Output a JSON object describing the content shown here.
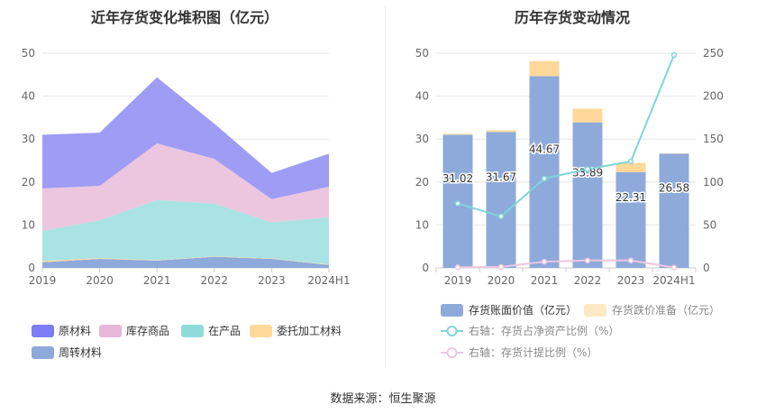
{
  "titles": {
    "left": "近年存货变化堆积图（亿元）",
    "right": "历年存货变动情况"
  },
  "source_text": "数据来源：恒生聚源",
  "chart_data": [
    {
      "type": "area",
      "stacked": true,
      "title": "近年存货变化堆积图（亿元）",
      "x": [
        "2019",
        "2020",
        "2021",
        "2022",
        "2023",
        "2024H1"
      ],
      "ylim": [
        0,
        50
      ],
      "yticks": [
        0,
        10,
        20,
        30,
        40,
        50
      ],
      "grid": true,
      "legend_position": "bottom",
      "series": [
        {
          "name": "周转材料",
          "color": "#8eaadb",
          "values": [
            1.3,
            2.1,
            1.7,
            2.6,
            2.1,
            0.7
          ]
        },
        {
          "name": "委托加工材料",
          "color": "#ffd89a",
          "values": [
            0.3,
            0.2,
            0.1,
            0.1,
            0.1,
            0.1
          ]
        },
        {
          "name": "在产品",
          "color": "#a9e3e3",
          "values": [
            7.0,
            8.8,
            14.0,
            12.3,
            8.4,
            11.0
          ]
        },
        {
          "name": "库存商品",
          "color": "#ecc6df",
          "values": [
            9.9,
            8.0,
            13.2,
            10.4,
            5.4,
            7.1
          ]
        },
        {
          "name": "原材料",
          "color": "#9e9cf5",
          "values": [
            12.5,
            12.4,
            15.4,
            8.2,
            6.1,
            7.7
          ]
        }
      ],
      "legend_order": [
        "原材料",
        "库存商品",
        "在产品",
        "委托加工材料",
        "周转材料"
      ],
      "legend_colors": {
        "原材料": "#7d7cf2",
        "库存商品": "#e7b6d9",
        "在产品": "#8fdbdc",
        "委托加工材料": "#ffd89a",
        "周转材料": "#8eaadb"
      }
    },
    {
      "type": "bar",
      "stacked": true,
      "title": "历年存货变动情况",
      "categories": [
        "2019",
        "2020",
        "2021",
        "2022",
        "2023",
        "2024H1"
      ],
      "ylim": [
        0,
        50
      ],
      "yticks": [
        0,
        10,
        20,
        30,
        40,
        50
      ],
      "y2lim": [
        0,
        250
      ],
      "y2ticks": [
        0,
        50,
        100,
        150,
        200,
        250
      ],
      "grid": true,
      "legend_position": "bottom",
      "series": [
        {
          "name": "存货账面价值（亿元）",
          "color": "#8eaadb",
          "type": "bar",
          "values": [
            31.02,
            31.67,
            44.67,
            33.89,
            22.31,
            26.58
          ],
          "labels": [
            "31.02",
            "31.67",
            "44.67",
            "33.89",
            "22.31",
            "26.58"
          ]
        },
        {
          "name": "存货跌价准备（亿元）",
          "color": "#ffd89a",
          "type": "bar",
          "values": [
            0.2,
            0.4,
            3.5,
            3.2,
            2.1,
            0.1
          ]
        },
        {
          "name": "右轴：存货占净资产比例（%）",
          "color": "#7fd6d9",
          "type": "line",
          "axis": "right",
          "values": [
            75,
            60,
            104,
            115,
            124,
            248
          ]
        },
        {
          "name": "右轴：存货计提比例（%）",
          "color": "#ecc6df",
          "type": "line",
          "axis": "right",
          "values": [
            0.6,
            1.2,
            7.2,
            8.6,
            8.6,
            0.4
          ]
        }
      ]
    }
  ]
}
